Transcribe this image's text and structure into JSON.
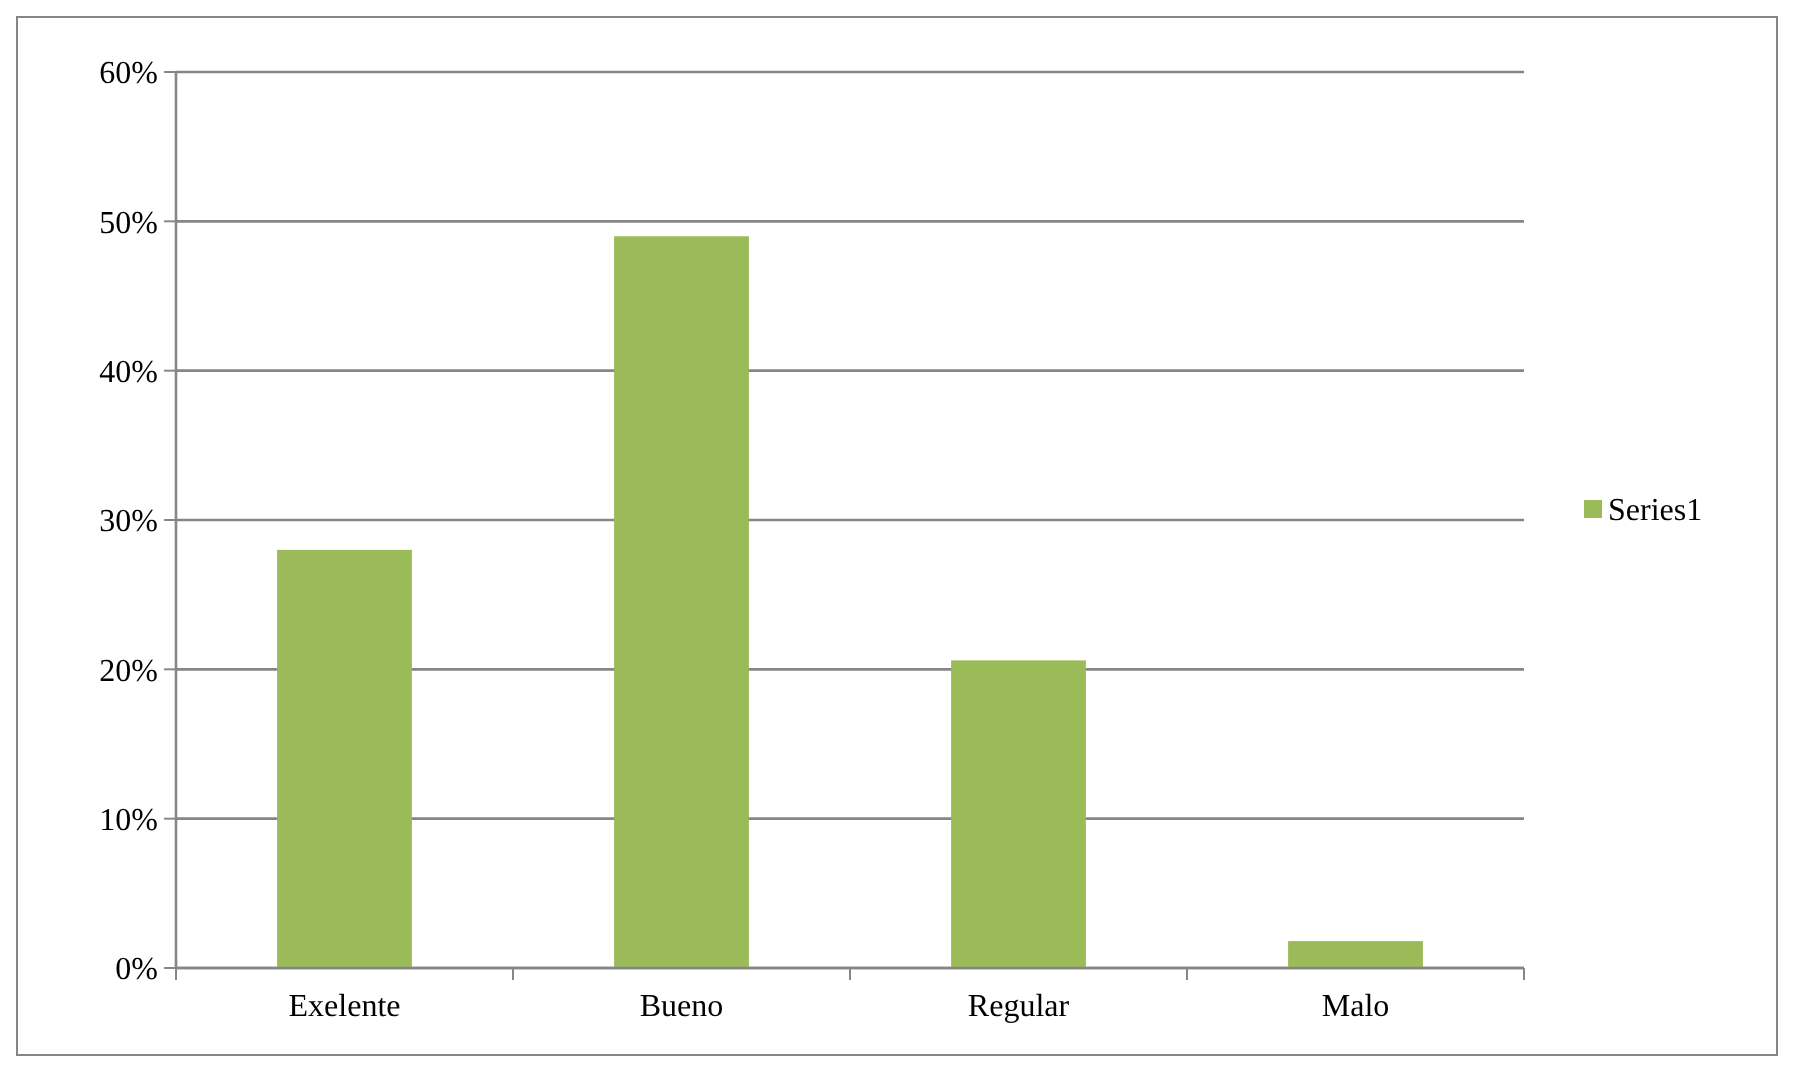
{
  "chart_data": {
    "type": "bar",
    "categories": [
      "Exelente",
      "Bueno",
      "Regular",
      "Malo"
    ],
    "series": [
      {
        "name": "Series1",
        "color": "#9bbb59",
        "values": [
          28.0,
          49.0,
          20.6,
          1.8
        ]
      }
    ],
    "ylim": [
      0,
      60
    ],
    "yticks": [
      {
        "value": 0,
        "label": "0%"
      },
      {
        "value": 10,
        "label": "10%"
      },
      {
        "value": 20,
        "label": "20%"
      },
      {
        "value": 30,
        "label": "30%"
      },
      {
        "value": 40,
        "label": "40%"
      },
      {
        "value": 50,
        "label": "50%"
      },
      {
        "value": 60,
        "label": "60%"
      }
    ],
    "grid": "y",
    "legend": "right"
  }
}
